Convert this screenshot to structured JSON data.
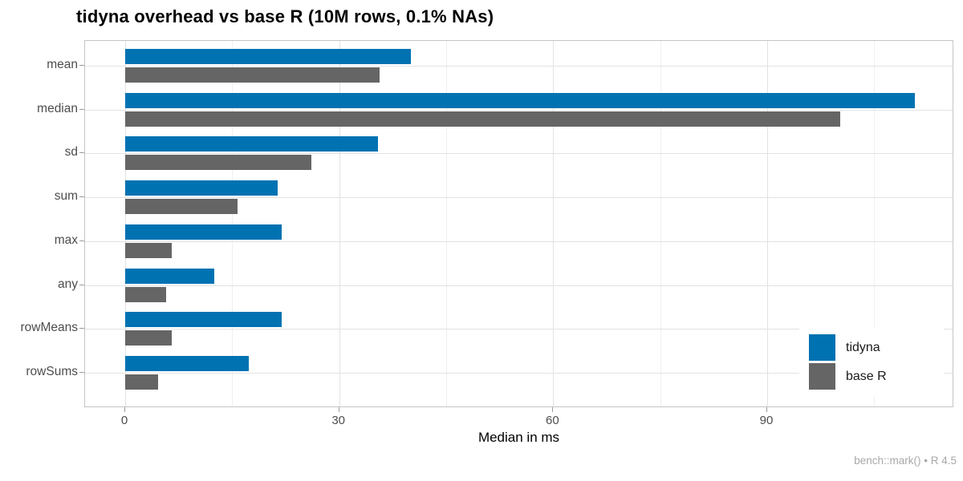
{
  "chart_data": {
    "type": "bar",
    "orientation": "horizontal",
    "title": "tidyna overhead vs base R (10M rows, 0.1% NAs)",
    "xlabel": "Median in ms",
    "ylabel": "",
    "caption": "bench::mark() • R 4.5",
    "categories": [
      "mean",
      "median",
      "sd",
      "sum",
      "max",
      "any",
      "rowMeans",
      "rowSums"
    ],
    "series": [
      {
        "name": "tidyna",
        "color": "#0072B2",
        "values": [
          40.1,
          110.7,
          35.4,
          21.4,
          21.9,
          12.5,
          21.9,
          17.3
        ]
      },
      {
        "name": "base R",
        "color": "#656565",
        "values": [
          35.7,
          100.2,
          26.1,
          15.7,
          6.5,
          5.7,
          6.5,
          4.6
        ]
      }
    ],
    "x_ticks": [
      0,
      30,
      60,
      90
    ],
    "x_minor_ticks": [
      15,
      45,
      75,
      105
    ],
    "xlim": [
      -5.6,
      116.2
    ],
    "grid": true,
    "legend_position": "inside-bottom-right"
  },
  "styles": {
    "grid_major_color": "#e2e2e2",
    "grid_minor_color": "#efefef",
    "panel_border_color": "#c5c5c5",
    "axis_text_color": "#4d4d4d",
    "caption_color": "#a8a8a8",
    "title_color": "#000000"
  }
}
